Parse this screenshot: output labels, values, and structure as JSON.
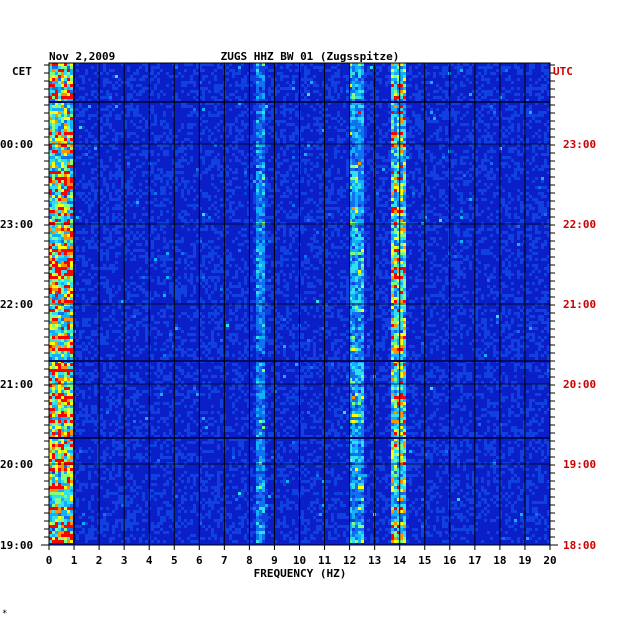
{
  "chart_data": {
    "type": "heatmap",
    "title": "ZUGS HHZ BW 01 (Zugsspitze)",
    "date": "Nov 2,2009",
    "xlabel": "FREQUENCY (HZ)",
    "x_ticks": [
      "0",
      "1",
      "2",
      "3",
      "4",
      "5",
      "6",
      "7",
      "8",
      "9",
      "10",
      "11",
      "12",
      "13",
      "14",
      "15",
      "16",
      "17",
      "18",
      "19",
      "20"
    ],
    "xlim": [
      0,
      20
    ],
    "left_axis_label": "CET",
    "right_axis_label": "UTC",
    "left_time_ticks": [
      "00:00",
      "23:00",
      "22:00",
      "21:00",
      "20:00",
      "19:00"
    ],
    "right_time_ticks": [
      "23:00",
      "22:00",
      "21:00",
      "20:00",
      "19:00",
      "18:00"
    ],
    "time_range_utc": [
      "18:00",
      "23:40"
    ],
    "colors": {
      "background": "#0a1fc8",
      "low": "#0022cc",
      "mid": "#00c8ff",
      "high": "#ffff00",
      "peak": "#ff0000",
      "grid": "#000000",
      "utc_text": "#cc0000"
    },
    "energy_bands_hz": [
      {
        "from": 0.0,
        "to": 1.0,
        "intensity": 0.85
      },
      {
        "from": 8.3,
        "to": 8.6,
        "intensity": 0.35
      },
      {
        "from": 12.0,
        "to": 12.6,
        "intensity": 0.45
      },
      {
        "from": 13.7,
        "to": 14.3,
        "intensity": 0.7
      }
    ],
    "corner_mark": "*"
  }
}
